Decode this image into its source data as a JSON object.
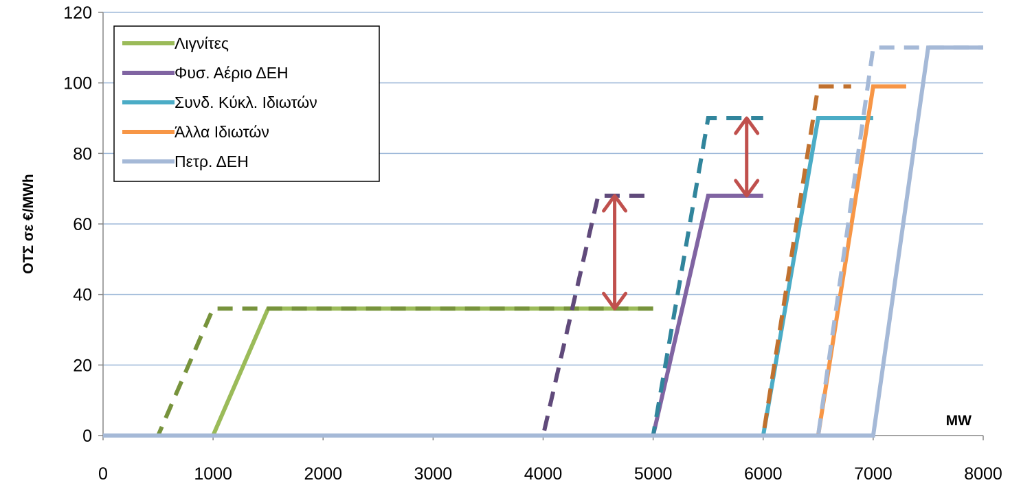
{
  "chart_data": {
    "type": "line",
    "ylabel": "ΟΤΣ σε €/MWh",
    "xlabel": "MW",
    "xlim": [
      0,
      8000
    ],
    "ylim": [
      0,
      120
    ],
    "xticks": [
      "0",
      "1000",
      "2000",
      "3000",
      "4000",
      "5000",
      "6000",
      "7000",
      "8000"
    ],
    "yticks": [
      "0",
      "20",
      "40",
      "60",
      "80",
      "100",
      "120"
    ],
    "grid": "horizontal",
    "legend_position": "top-left",
    "legend": [
      "Λιγνίτες",
      "Φυσ. Αέριο ΔΕΗ",
      "Συνδ. Κύκλ. Ιδιωτών",
      "Άλλα Ιδιωτών",
      "Πετρ. ΔΕΗ"
    ],
    "series": [
      {
        "name": "Λιγνίτες",
        "color": "#9BBB59",
        "style": "solid",
        "x": [
          0,
          1000,
          1500,
          5000
        ],
        "y": [
          0,
          0,
          36,
          36
        ]
      },
      {
        "name": "Φυσ. Αέριο ΔΕΗ",
        "color": "#8064A2",
        "style": "solid",
        "x": [
          0,
          5000,
          5500,
          6000
        ],
        "y": [
          0,
          0,
          68,
          68
        ]
      },
      {
        "name": "Συνδ. Κύκλ. Ιδιωτών",
        "color": "#4BACC6",
        "style": "solid",
        "x": [
          0,
          6000,
          6500,
          7000
        ],
        "y": [
          0,
          0,
          90,
          90
        ]
      },
      {
        "name": "Άλλα Ιδιωτών",
        "color": "#F79646",
        "style": "solid",
        "x": [
          0,
          6500,
          7000,
          7300
        ],
        "y": [
          0,
          0,
          99,
          99
        ]
      },
      {
        "name": "Πετρ. ΔΕΗ",
        "color": "#A5B9D7",
        "style": "solid",
        "x": [
          0,
          7000,
          7500,
          8000
        ],
        "y": [
          0,
          0,
          110,
          110
        ]
      },
      {
        "color": "#77933C",
        "style": "dashed",
        "x": [
          0,
          500,
          1000,
          5000
        ],
        "y": [
          0,
          0,
          36,
          36
        ]
      },
      {
        "color": "#604A7B",
        "style": "dashed",
        "x": [
          0,
          4000,
          4500,
          5000
        ],
        "y": [
          0,
          0,
          68,
          68
        ]
      },
      {
        "color": "#31859C",
        "style": "dashed",
        "x": [
          0,
          5000,
          5500,
          6000
        ],
        "y": [
          0,
          0,
          90,
          90
        ]
      },
      {
        "color": "#C0712F",
        "style": "dashed",
        "x": [
          0,
          6000,
          6500,
          6800
        ],
        "y": [
          0,
          0,
          99,
          99
        ]
      },
      {
        "color": "#A5B9D7",
        "style": "dashed",
        "x": [
          0,
          6500,
          7000,
          8000
        ],
        "y": [
          0,
          0,
          110,
          110
        ]
      }
    ],
    "annotations": [
      {
        "type": "double-arrow",
        "color": "#C0504D",
        "x": 4650,
        "y1": 36,
        "y2": 68
      },
      {
        "type": "double-arrow",
        "color": "#C0504D",
        "x": 5850,
        "y1": 68,
        "y2": 90
      }
    ],
    "colors": {
      "grid": "#9DB8D9",
      "axis": "#868686",
      "arrow": "#C0504D"
    }
  }
}
